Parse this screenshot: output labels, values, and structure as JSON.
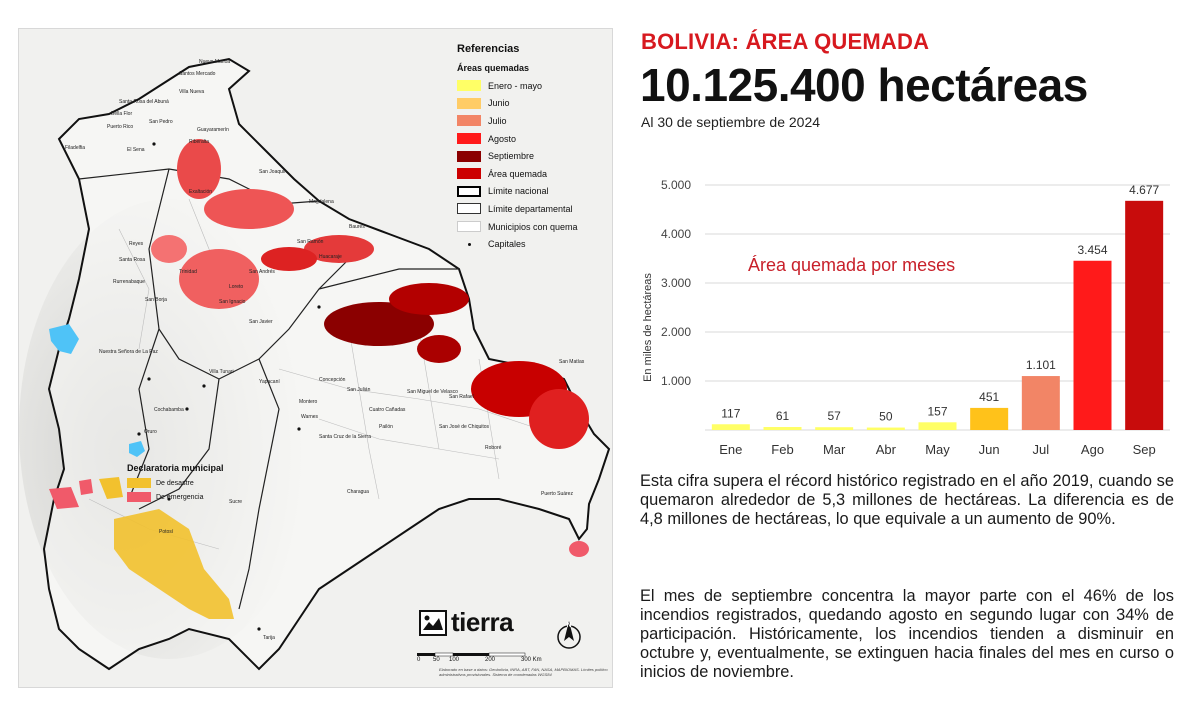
{
  "header": {
    "kicker": "BOLIVIA: ÁREA QUEMADA",
    "headline": "10.125.400 hectáreas",
    "dateline": "Al 30 de septiembre de 2024"
  },
  "map": {
    "legend": {
      "title": "Referencias",
      "subtitle": "Áreas quemadas",
      "items": [
        {
          "label": "Enero - mayo",
          "color": "#ffff66"
        },
        {
          "label": "Junio",
          "color": "#ffcc66"
        },
        {
          "label": "Julio",
          "color": "#f28566"
        },
        {
          "label": "Agosto",
          "color": "#ff1a1a"
        },
        {
          "label": "Septiembre",
          "color": "#8b0000"
        },
        {
          "label": "Área quemada",
          "color": "#cc0000"
        },
        {
          "label": "Límite nacional",
          "color": "#000000"
        },
        {
          "label": "Límite departamental",
          "color": "#333333"
        },
        {
          "label": "Municipios con quema",
          "color": "#cccccc"
        },
        {
          "label": "Capitales",
          "color": "#000000"
        }
      ]
    },
    "declaratoria": {
      "title": "Declaratoria municipal",
      "items": [
        {
          "label": "De desastre",
          "color": "#f2c12e"
        },
        {
          "label": "De emergencia",
          "color": "#f05a6a"
        }
      ]
    },
    "places": [
      "Nuevo Manoa",
      "Santos Mercado",
      "Villa Nueva",
      "Santa Rosa del Abuná",
      "Bella Flor",
      "Puerto Rico",
      "San Pedro",
      "El Sena",
      "Filadelfia",
      "Riberalta",
      "Guayaramerín",
      "Exaltación",
      "San Joaquín",
      "Magdalena",
      "Baures",
      "San Ramón",
      "Huacaraje",
      "Reyes",
      "Santa Rosa",
      "San Borja",
      "Rurrenabaque",
      "San Ignacio",
      "San Javier",
      "Trinidad",
      "Loreto",
      "San Andrés",
      "Concepción",
      "San Julián",
      "Cuatro Cañadas",
      "San Miguel de Velasco",
      "San Rafael",
      "San José de Chiquitos",
      "Roboré",
      "Puerto Suárez",
      "Pailón",
      "Charagua",
      "Villa Tunari",
      "Cochabamba",
      "Oruro",
      "Nuestra Señora de La Paz",
      "Tarija",
      "Sucre",
      "Potosí",
      "Santa Cruz de la Sierra",
      "Yapacaní",
      "Montero",
      "Warnes",
      "San Matías"
    ],
    "brand": "tierra",
    "scale_labels": [
      "0",
      "50",
      "100",
      "200",
      "300 Km"
    ],
    "credits": "Elaborado en base a datos: Geobolivia, INRA, ABT, FAN, NASA, MAPBIOMAS. Límites político administrativos provisionales. Sistema de coordenadas WGS84",
    "north_label": "N"
  },
  "chart_data": {
    "type": "bar",
    "title": "Área quemada por meses",
    "ylabel": "En miles de hectáreas",
    "xlabel": "",
    "ylim": [
      0,
      5000
    ],
    "yticks": [
      "5.000",
      "4.000",
      "3.000",
      "2.000",
      "1.000"
    ],
    "ytick_values": [
      5000,
      4000,
      3000,
      2000,
      1000
    ],
    "categories": [
      "Ene",
      "Feb",
      "Mar",
      "Abr",
      "May",
      "Jun",
      "Jul",
      "Ago",
      "Sep"
    ],
    "values": [
      117,
      61,
      57,
      50,
      157,
      451,
      1101,
      3454,
      4677
    ],
    "value_labels": [
      "117",
      "61",
      "57",
      "50",
      "157",
      "451",
      "1.101",
      "3.454",
      "4.677"
    ],
    "colors": [
      "#ffff66",
      "#ffff66",
      "#ffff66",
      "#ffff66",
      "#ffff66",
      "#ffc21a",
      "#f28566",
      "#ff1a1a",
      "#c80c0c"
    ],
    "grid": true,
    "annotation": "Área quemada por meses"
  },
  "body": {
    "paragraph1": "Esta cifra supera el récord histórico registrado en el año 2019, cuando se quemaron alrededor de 5,3 millones de hectáreas. La diferencia es de 4,8 millones de hectáreas, lo que equivale a un aumento de 90%.",
    "paragraph2": "El mes de septiembre concentra la mayor parte con el 46% de los incendios registrados, quedando agosto en segundo lugar con 34% de participación. Históricamente, los incendios tienden a disminuir en octubre y, eventualmente, se extinguen hacia finales del mes en curso o inicios de noviembre."
  }
}
